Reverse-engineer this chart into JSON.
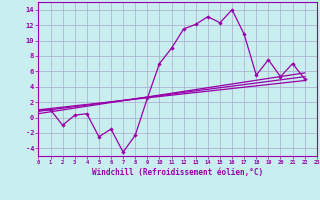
{
  "xlabel": "Windchill (Refroidissement éolien,°C)",
  "background_color": "#c8eef0",
  "grid_color": "#aaaacc",
  "line_color": "#9900aa",
  "x_values": [
    0,
    1,
    2,
    3,
    4,
    5,
    6,
    7,
    8,
    9,
    10,
    11,
    12,
    13,
    14,
    15,
    16,
    17,
    18,
    19,
    20,
    21,
    22,
    23
  ],
  "line_main_y": [
    1,
    1,
    -1,
    0.3,
    0.5,
    -2.5,
    -1.5,
    -4.5,
    -2.3,
    2.5,
    7.0,
    9.0,
    11.5,
    12.1,
    13.1,
    12.3,
    14.0,
    10.8,
    5.5,
    7.5,
    5.3,
    7.0,
    5.0,
    null
  ],
  "line_trend1_x": [
    0,
    22
  ],
  "line_trend1_y": [
    1.0,
    4.8
  ],
  "line_trend2_x": [
    0,
    22
  ],
  "line_trend2_y": [
    0.8,
    5.3
  ],
  "line_trend3_x": [
    0,
    22
  ],
  "line_trend3_y": [
    0.5,
    5.8
  ],
  "xlim": [
    0,
    23
  ],
  "ylim": [
    -5,
    15
  ],
  "yticks": [
    -4,
    -2,
    0,
    2,
    4,
    6,
    8,
    10,
    12,
    14
  ],
  "xtick_labels": [
    "0",
    "1",
    "2",
    "3",
    "4",
    "5",
    "6",
    "7",
    "8",
    "9",
    "10",
    "11",
    "12",
    "13",
    "14",
    "15",
    "16",
    "17",
    "18",
    "19",
    "20",
    "21",
    "22",
    "23"
  ]
}
